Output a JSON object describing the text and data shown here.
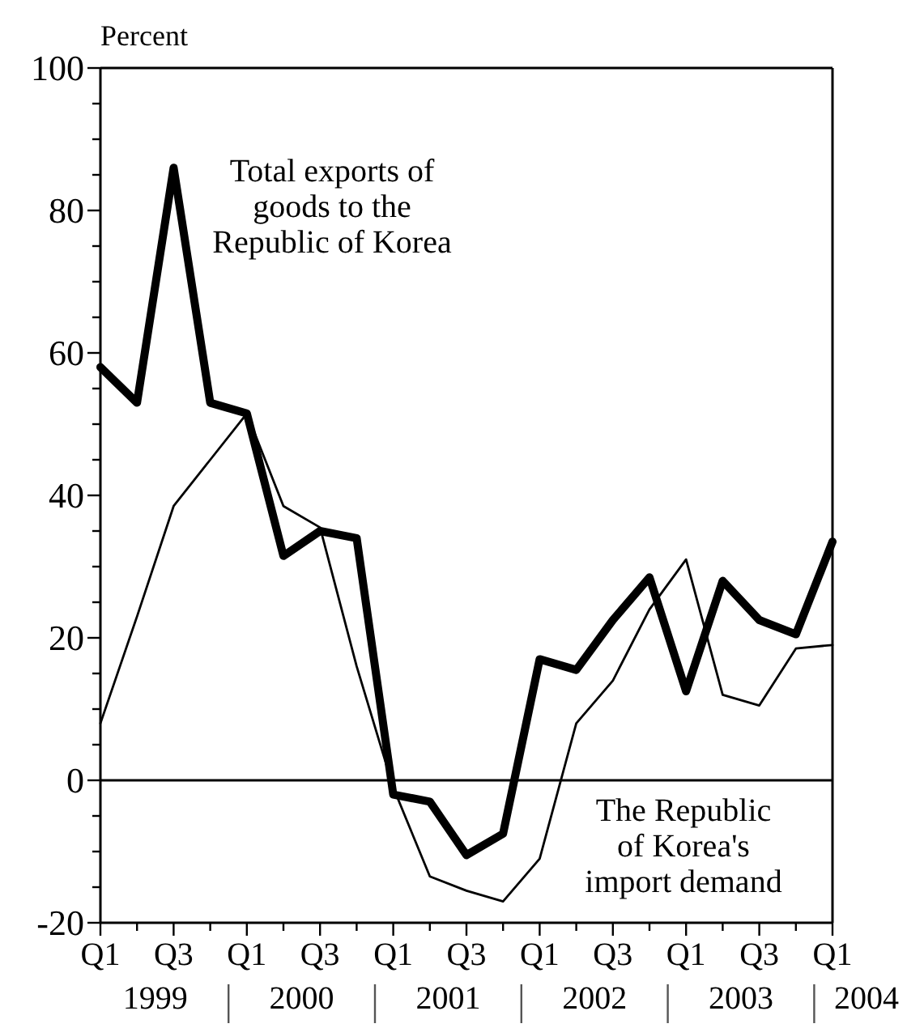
{
  "chart_data": {
    "type": "line",
    "ylabel": "Percent",
    "categories": [
      "Q1",
      null,
      "Q3",
      null,
      "Q1",
      null,
      "Q3",
      null,
      "Q1",
      null,
      "Q3",
      null,
      "Q1",
      null,
      "Q3",
      null,
      "Q1",
      null,
      "Q3",
      null,
      "Q1"
    ],
    "annotations": [
      "1999",
      "2000",
      "2001",
      "2002",
      "2003",
      "2004"
    ],
    "series": [
      {
        "name": "Total exports of goods to the Republic of Korea",
        "color": "#000000",
        "values": [
          58,
          53,
          86,
          53,
          51.5,
          31.5,
          35,
          34,
          -2,
          -3,
          -10.5,
          -7.5,
          17,
          15.5,
          22.5,
          28.5,
          12.5,
          28,
          22.5,
          20.5,
          33.5
        ]
      },
      {
        "name": "The Republic of Korea's import demand",
        "color": "#000000",
        "values": [
          8,
          23,
          38.5,
          45,
          51.5,
          38.5,
          35.5,
          16,
          -1,
          -13.5,
          -15.5,
          -17,
          -11,
          8,
          14,
          24,
          31,
          12,
          10.5,
          18.5,
          19
        ]
      }
    ],
    "ylim": [
      -20,
      100
    ],
    "yticks": [
      -20,
      {
        "value": -15,
        "label": null
      },
      {
        "value": -10,
        "label": null
      },
      {
        "value": -5,
        "label": null
      },
      0,
      {
        "value": 5,
        "label": null
      },
      {
        "value": 10,
        "label": null
      },
      {
        "value": 15,
        "label": null
      },
      20,
      {
        "value": 25,
        "label": null
      },
      {
        "value": 30,
        "label": null
      },
      {
        "value": 35,
        "label": null
      },
      40,
      {
        "value": 45,
        "label": null
      },
      {
        "value": 50,
        "label": null
      },
      {
        "value": 55,
        "label": null
      },
      60,
      {
        "value": 65,
        "label": null
      },
      {
        "value": 70,
        "label": null
      },
      {
        "value": 75,
        "label": null
      },
      80,
      {
        "value": 85,
        "label": null
      },
      {
        "value": 90,
        "label": null
      },
      {
        "value": 95,
        "label": null
      },
      100
    ],
    "ref_lines": [
      {
        "axis": "y",
        "value": 0,
        "color": "#000000"
      }
    ],
    "grid": false,
    "legend": false,
    "marker": "none",
    "line_style": "solid"
  }
}
